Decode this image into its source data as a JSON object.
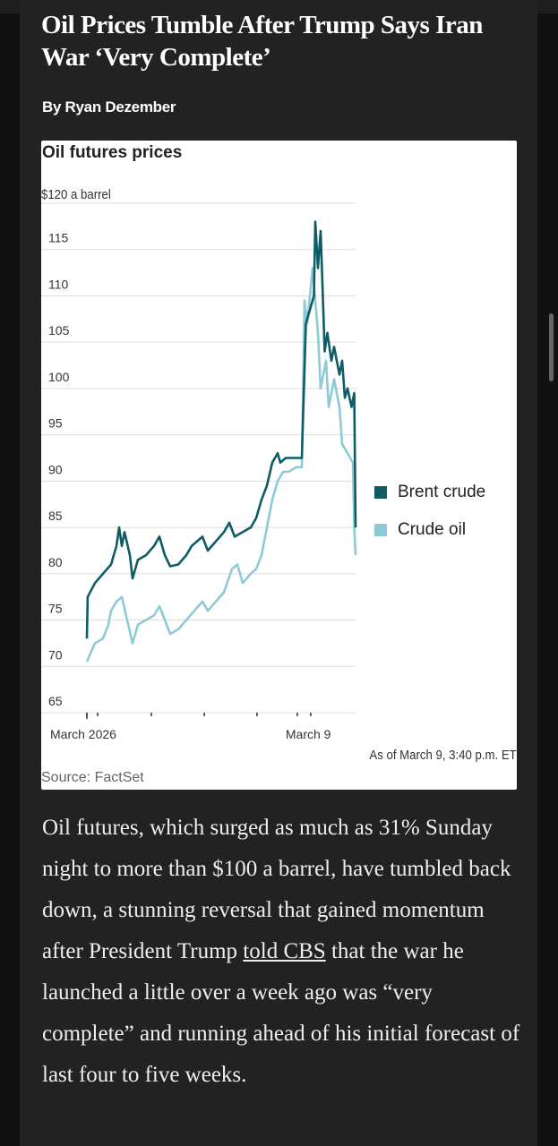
{
  "article": {
    "headline": "Oil Prices Tumble After Trump Says Iran War ‘Very Complete’",
    "byline": "By Ryan Dezember",
    "body_before_link": "Oil futures, which surged as much as 31% Sunday night to more than $100 a barrel, have tumbled back down, a stunning reversal that gained momentum after President Trump ",
    "link_text": "told CBS",
    "body_after_link": " that the war he launched a little over a week ago was “very complete” and running ahead of his initial forecast of last four to five weeks."
  },
  "chart_data": {
    "type": "line",
    "title": "Oil futures prices",
    "ylabel": "$120 a barrel",
    "ylim": [
      65,
      120
    ],
    "yticks": [
      120,
      115,
      110,
      105,
      100,
      95,
      90,
      85,
      80,
      75,
      70,
      65
    ],
    "ytick_labels": [
      "",
      "115",
      "110",
      "105",
      "100",
      "95",
      "90",
      "85",
      "80",
      "75",
      "70",
      "65"
    ],
    "xlim": [
      0,
      100
    ],
    "x_ticks": [
      0,
      4,
      24,
      43.7,
      63.3,
      78.3,
      83.3
    ],
    "x_labels": [
      {
        "at": 0,
        "text": "March 2026"
      },
      {
        "at": 83.3,
        "text": "March 9"
      }
    ],
    "note": "As of March 9, 3:40 p.m. ET",
    "source": "Source: FactSet",
    "grid": true,
    "legend_position": "right",
    "series": [
      {
        "name": "Brent crude",
        "color": "#0e5c66",
        "points": [
          [
            0,
            73
          ],
          [
            0.3,
            77.5
          ],
          [
            3,
            79
          ],
          [
            6,
            80
          ],
          [
            9,
            81
          ],
          [
            11,
            83
          ],
          [
            12,
            85
          ],
          [
            13,
            83
          ],
          [
            14,
            84.5
          ],
          [
            16,
            82
          ],
          [
            17,
            79.5
          ],
          [
            19,
            81.5
          ],
          [
            22,
            82
          ],
          [
            25,
            83
          ],
          [
            27,
            84
          ],
          [
            29,
            82
          ],
          [
            31,
            80.8
          ],
          [
            34,
            81
          ],
          [
            37,
            82
          ],
          [
            39,
            83
          ],
          [
            41,
            83.5
          ],
          [
            43,
            84
          ],
          [
            45,
            82.5
          ],
          [
            48,
            83.5
          ],
          [
            51,
            84.5
          ],
          [
            53,
            85.5
          ],
          [
            55,
            84
          ],
          [
            58,
            84.5
          ],
          [
            61,
            85
          ],
          [
            63,
            86
          ],
          [
            65,
            88
          ],
          [
            67,
            89.5
          ],
          [
            69,
            92
          ],
          [
            71,
            93
          ],
          [
            72,
            92
          ],
          [
            74,
            92.5
          ],
          [
            80,
            92.5
          ],
          [
            81.5,
            107
          ],
          [
            83,
            108.5
          ],
          [
            84.5,
            110
          ],
          [
            85,
            118
          ],
          [
            86,
            113
          ],
          [
            87,
            117
          ],
          [
            88.5,
            104
          ],
          [
            89.5,
            106
          ],
          [
            91,
            103
          ],
          [
            92,
            104.5
          ],
          [
            94,
            101.5
          ],
          [
            95,
            103
          ],
          [
            96,
            99
          ],
          [
            97,
            100
          ],
          [
            98.5,
            98
          ],
          [
            99.5,
            99.5
          ],
          [
            100,
            85
          ]
        ]
      },
      {
        "name": "Crude oil",
        "color": "#8ecad6",
        "points": [
          [
            0,
            70.5
          ],
          [
            3,
            72.5
          ],
          [
            6,
            73
          ],
          [
            8,
            74.5
          ],
          [
            9,
            76
          ],
          [
            11,
            77
          ],
          [
            13,
            77.5
          ],
          [
            15,
            75
          ],
          [
            17,
            72.5
          ],
          [
            19,
            74.5
          ],
          [
            22,
            75
          ],
          [
            25,
            75.5
          ],
          [
            27,
            76.5
          ],
          [
            29,
            75
          ],
          [
            31,
            73.5
          ],
          [
            34,
            74
          ],
          [
            37,
            75
          ],
          [
            40,
            76
          ],
          [
            43,
            77
          ],
          [
            45,
            76
          ],
          [
            48,
            77
          ],
          [
            51,
            78
          ],
          [
            54,
            80.5
          ],
          [
            56,
            81
          ],
          [
            58,
            79
          ],
          [
            61,
            80
          ],
          [
            63,
            80.5
          ],
          [
            65,
            82
          ],
          [
            67,
            85
          ],
          [
            69,
            88
          ],
          [
            71,
            90
          ],
          [
            73,
            91
          ],
          [
            75,
            91
          ],
          [
            78,
            91.5
          ],
          [
            80,
            91.5
          ],
          [
            81,
            109.5
          ],
          [
            82,
            107
          ],
          [
            84,
            113
          ],
          [
            86,
            106
          ],
          [
            87,
            100
          ],
          [
            89,
            103
          ],
          [
            90,
            98
          ],
          [
            92,
            101
          ],
          [
            94,
            98
          ],
          [
            95,
            94
          ],
          [
            97,
            93
          ],
          [
            99,
            92
          ],
          [
            99.5,
            85
          ],
          [
            100,
            82
          ]
        ]
      }
    ]
  }
}
